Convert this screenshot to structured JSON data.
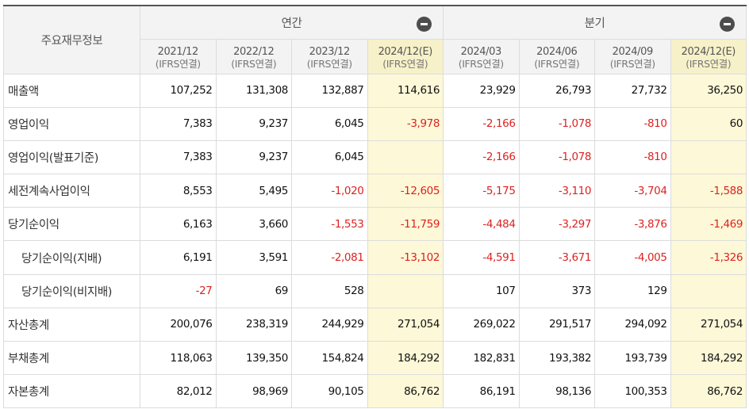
{
  "header": {
    "label_title": "주요재무정보",
    "annual_title": "연간",
    "quarter_title": "분기",
    "periods": [
      {
        "date": "2021/12",
        "type": "(IFRS연결)",
        "estimate": false
      },
      {
        "date": "2022/12",
        "type": "(IFRS연결)",
        "estimate": false
      },
      {
        "date": "2023/12",
        "type": "(IFRS연결)",
        "estimate": false
      },
      {
        "date": "2024/12(E)",
        "type": "(IFRS연결)",
        "estimate": true
      },
      {
        "date": "2024/03",
        "type": "(IFRS연결)",
        "estimate": false
      },
      {
        "date": "2024/06",
        "type": "(IFRS연결)",
        "estimate": false
      },
      {
        "date": "2024/09",
        "type": "(IFRS연결)",
        "estimate": false
      },
      {
        "date": "2024/12(E)",
        "type": "(IFRS연결)",
        "estimate": true
      }
    ]
  },
  "rows": [
    {
      "label": "매출액",
      "indent": false,
      "values": [
        "107,252",
        "131,308",
        "132,887",
        "114,616",
        "23,929",
        "26,793",
        "27,732",
        "36,250"
      ]
    },
    {
      "label": "영업이익",
      "indent": false,
      "values": [
        "7,383",
        "9,237",
        "6,045",
        "-3,978",
        "-2,166",
        "-1,078",
        "-810",
        "60"
      ]
    },
    {
      "label": "영업이익(발표기준)",
      "indent": false,
      "values": [
        "7,383",
        "9,237",
        "6,045",
        "",
        "-2,166",
        "-1,078",
        "-810",
        ""
      ]
    },
    {
      "label": "세전계속사업이익",
      "indent": false,
      "values": [
        "8,553",
        "5,495",
        "-1,020",
        "-12,605",
        "-5,175",
        "-3,110",
        "-3,704",
        "-1,588"
      ]
    },
    {
      "label": "당기순이익",
      "indent": false,
      "values": [
        "6,163",
        "3,660",
        "-1,553",
        "-11,759",
        "-4,484",
        "-3,297",
        "-3,876",
        "-1,469"
      ]
    },
    {
      "label": "당기순이익(지배)",
      "indent": true,
      "values": [
        "6,191",
        "3,591",
        "-2,081",
        "-13,102",
        "-4,591",
        "-3,671",
        "-4,005",
        "-1,326"
      ]
    },
    {
      "label": "당기순이익(비지배)",
      "indent": true,
      "values": [
        "-27",
        "69",
        "528",
        "",
        "107",
        "373",
        "129",
        ""
      ]
    },
    {
      "label": "자산총계",
      "indent": false,
      "values": [
        "200,076",
        "238,319",
        "244,929",
        "271,054",
        "269,022",
        "291,517",
        "294,092",
        "271,054"
      ]
    },
    {
      "label": "부채총계",
      "indent": false,
      "values": [
        "118,063",
        "139,350",
        "154,824",
        "184,292",
        "182,831",
        "193,382",
        "193,739",
        "184,292"
      ]
    },
    {
      "label": "자본총계",
      "indent": false,
      "values": [
        "82,012",
        "98,969",
        "90,105",
        "86,762",
        "86,191",
        "98,136",
        "100,353",
        "86,762"
      ]
    }
  ],
  "icons": {
    "annual_toggle": "minus-circle-icon",
    "quarter_toggle": "minus-circle-icon"
  },
  "colors": {
    "negative": "#dd2222",
    "estimate_bg": "#fdf8d7",
    "header_bg": "#f3f3f3"
  }
}
